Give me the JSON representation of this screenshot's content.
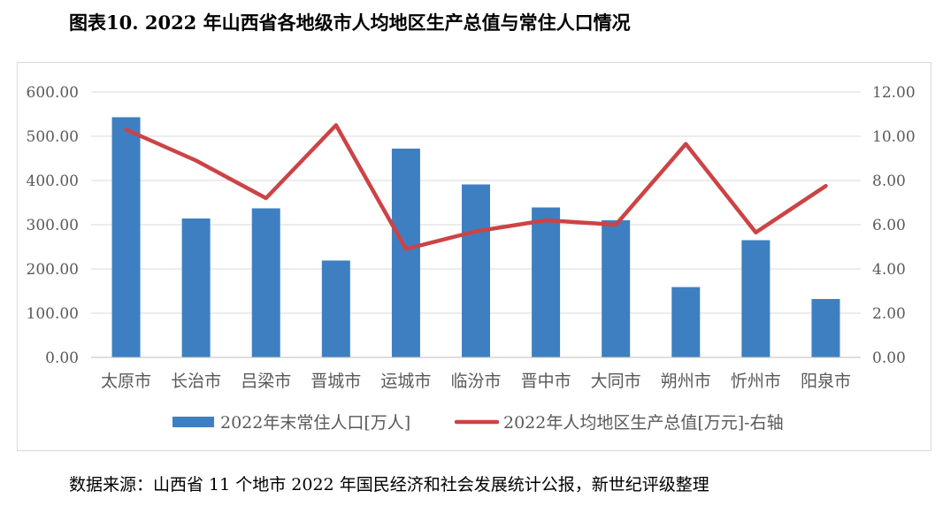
{
  "title": "图表10. 2022 年山西省各地级市人均地区生产总值与常住人口情况",
  "source": "数据来源：山西省 11 个地市 2022 年国民经济和社会发展统计公报，新世纪评级整理",
  "colors": {
    "bar": "#3e7fc1",
    "line": "#cc4346",
    "grid": "#d9d9d9",
    "text": "#595959"
  },
  "chart_data": {
    "type": "bar",
    "categories": [
      "太原市",
      "长治市",
      "吕梁市",
      "晋城市",
      "运城市",
      "临汾市",
      "晋中市",
      "大同市",
      "朔州市",
      "忻州市",
      "阳泉市"
    ],
    "series": [
      {
        "name": "2022年末常住人口[万人]",
        "type": "bar",
        "axis": "left",
        "values": [
          543,
          314,
          337,
          219,
          472,
          391,
          339,
          310,
          159,
          265,
          132
        ]
      },
      {
        "name": "2022年人均地区生产总值[万元]-右轴",
        "type": "line",
        "axis": "right",
        "values": [
          10.3,
          8.9,
          7.2,
          10.5,
          4.9,
          5.7,
          6.2,
          6.0,
          9.65,
          5.65,
          7.75
        ]
      }
    ],
    "y_left": {
      "min": 0,
      "max": 600,
      "ticks": [
        "0.00",
        "100.00",
        "200.00",
        "300.00",
        "400.00",
        "500.00",
        "600.00"
      ]
    },
    "y_right": {
      "min": 0,
      "max": 12,
      "ticks": [
        "0.00",
        "2.00",
        "4.00",
        "6.00",
        "8.00",
        "10.00",
        "12.00"
      ]
    },
    "grid": true,
    "legend": "bottom"
  }
}
